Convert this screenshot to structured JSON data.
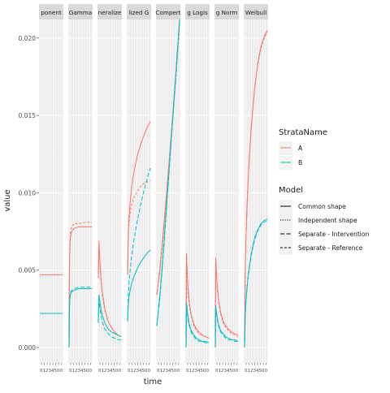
{
  "chart_data": {
    "type": "line",
    "facet_layout": "wrap",
    "facets": [
      "Exponential",
      "Gamma",
      "Generalized gamma",
      "Generalized F",
      "Gompertz",
      "Log-logistic",
      "Log-normal",
      "Weibull"
    ],
    "facet_labels_visible": [
      "ponent",
      "Gamma",
      "neralize",
      "lized G",
      "Compert",
      "g Logis",
      "g Norm",
      "Weibull"
    ],
    "xlabel": "time",
    "ylabel": "value",
    "ylim": [
      -0.001,
      0.0212
    ],
    "yticks": [
      0.0,
      0.005,
      0.01,
      0.015,
      0.02
    ],
    "ytick_labels": [
      "0.000",
      "0.005",
      "0.010",
      "0.015",
      "0.020"
    ],
    "xlim": [
      0,
      35
    ],
    "xtick_labels": [
      "01234500",
      "01234500",
      "01234500",
      "01234500",
      "01234500",
      "01234500",
      "01234500",
      "01234500"
    ],
    "grid": true,
    "legend_position": "right",
    "legends": [
      {
        "title": "StrataName",
        "entries": [
          {
            "label": "A",
            "color": "#F8766D"
          },
          {
            "label": "B",
            "color": "#00BFC4"
          }
        ]
      },
      {
        "title": "Model",
        "entries": [
          {
            "label": "Common shape",
            "dash": "solid"
          },
          {
            "label": "Independent shape",
            "dash": "dotted"
          },
          {
            "label": "Separate - Intervention",
            "dash": "longdash"
          },
          {
            "label": "Separate - Reference",
            "dash": "dashed"
          }
        ]
      }
    ],
    "series": [
      {
        "facet": 0,
        "strata": "A",
        "model": "Common shape",
        "x": [
          0,
          35
        ],
        "y": [
          0.0047,
          0.0047
        ]
      },
      {
        "facet": 0,
        "strata": "B",
        "model": "Common shape",
        "x": [
          0,
          35
        ],
        "y": [
          0.0022,
          0.0022
        ]
      },
      {
        "facet": 1,
        "strata": "A",
        "model": "Common shape",
        "x": [
          0,
          0.5,
          1,
          2,
          4,
          8,
          15,
          25,
          35
        ],
        "y": [
          0.0,
          0.0045,
          0.0062,
          0.0071,
          0.0075,
          0.0077,
          0.0078,
          0.0078,
          0.0078
        ]
      },
      {
        "facet": 1,
        "strata": "A",
        "model": "Separate - Reference",
        "x": [
          0,
          0.5,
          1,
          2,
          4,
          8,
          15,
          25,
          35
        ],
        "y": [
          0.0,
          0.0048,
          0.0065,
          0.0074,
          0.0078,
          0.008,
          0.008,
          0.0081,
          0.0081
        ]
      },
      {
        "facet": 1,
        "strata": "B",
        "model": "Common shape",
        "x": [
          0,
          0.5,
          1,
          2,
          4,
          8,
          15,
          25,
          35
        ],
        "y": [
          0.0,
          0.0022,
          0.003,
          0.0034,
          0.0036,
          0.0037,
          0.0038,
          0.0038,
          0.0038
        ]
      },
      {
        "facet": 1,
        "strata": "B",
        "model": "Separate - Intervention",
        "x": [
          0,
          0.5,
          1,
          2,
          4,
          8,
          15,
          25,
          35
        ],
        "y": [
          0.0,
          0.0023,
          0.0031,
          0.0035,
          0.0037,
          0.0038,
          0.0039,
          0.0039,
          0.0039
        ]
      },
      {
        "facet": 2,
        "strata": "A",
        "model": "Common shape",
        "x": [
          0,
          1,
          2,
          4,
          6,
          10,
          15,
          20,
          25,
          30,
          35
        ],
        "y": [
          0.0047,
          0.0069,
          0.006,
          0.0045,
          0.0036,
          0.0025,
          0.0017,
          0.0013,
          0.001,
          0.0008,
          0.0007
        ]
      },
      {
        "facet": 2,
        "strata": "A",
        "model": "Separate - Reference",
        "x": [
          0,
          1,
          2,
          4,
          6,
          10,
          15,
          20,
          25,
          30,
          35
        ],
        "y": [
          0.0045,
          0.0066,
          0.0058,
          0.0044,
          0.0035,
          0.0024,
          0.0017,
          0.0013,
          0.001,
          0.0008,
          0.0007
        ]
      },
      {
        "facet": 2,
        "strata": "B",
        "model": "Common shape",
        "x": [
          0,
          1,
          2,
          4,
          6,
          10,
          15,
          20,
          25,
          30,
          35
        ],
        "y": [
          0.0017,
          0.0034,
          0.0031,
          0.0025,
          0.0021,
          0.0016,
          0.0012,
          0.001,
          0.0009,
          0.0008,
          0.0007
        ]
      },
      {
        "facet": 2,
        "strata": "B",
        "model": "Separate - Intervention",
        "x": [
          0,
          1,
          2,
          4,
          6,
          10,
          15,
          20,
          25,
          30,
          35
        ],
        "y": [
          0.0016,
          0.003,
          0.0027,
          0.0021,
          0.0017,
          0.0012,
          0.0009,
          0.0007,
          0.0006,
          0.0005,
          0.0005
        ]
      },
      {
        "facet": 3,
        "strata": "A",
        "model": "Common shape",
        "x": [
          0,
          1,
          2,
          4,
          6,
          10,
          15,
          20,
          25,
          30,
          35
        ],
        "y": [
          0.0047,
          0.0072,
          0.0082,
          0.0094,
          0.0103,
          0.0114,
          0.0124,
          0.0131,
          0.0137,
          0.0142,
          0.0146
        ]
      },
      {
        "facet": 3,
        "strata": "A",
        "model": "Separate - Reference",
        "x": [
          0,
          1,
          2,
          4,
          6,
          10,
          15,
          20,
          25,
          30,
          35
        ],
        "y": [
          0.0047,
          0.007,
          0.0079,
          0.0087,
          0.0092,
          0.0097,
          0.0101,
          0.0104,
          0.0106,
          0.0107,
          0.0108
        ]
      },
      {
        "facet": 3,
        "strata": "B",
        "model": "Common shape",
        "x": [
          0,
          1,
          2,
          4,
          6,
          10,
          15,
          20,
          25,
          30,
          35
        ],
        "y": [
          0.0017,
          0.0027,
          0.0032,
          0.0037,
          0.0041,
          0.0046,
          0.0051,
          0.0055,
          0.0058,
          0.0061,
          0.0063
        ]
      },
      {
        "facet": 3,
        "strata": "B",
        "model": "Separate - Intervention",
        "x": [
          0,
          1,
          2,
          4,
          6,
          10,
          15,
          20,
          25,
          30,
          35
        ],
        "y": [
          0.0017,
          0.0032,
          0.004,
          0.005,
          0.0058,
          0.007,
          0.0082,
          0.0092,
          0.0101,
          0.0109,
          0.0116
        ]
      },
      {
        "facet": 4,
        "strata": "A",
        "model": "Common shape",
        "x": [
          0,
          5,
          10,
          15,
          20,
          25,
          30,
          35
        ],
        "y": [
          0.0034,
          0.0052,
          0.0075,
          0.01,
          0.0126,
          0.0153,
          0.0181,
          0.0212
        ]
      },
      {
        "facet": 4,
        "strata": "A",
        "model": "Separate - Reference",
        "x": [
          0,
          5,
          10,
          15,
          20,
          25,
          30,
          35
        ],
        "y": [
          0.0034,
          0.005,
          0.0072,
          0.0097,
          0.0123,
          0.015,
          0.0178,
          0.0207
        ]
      },
      {
        "facet": 4,
        "strata": "B",
        "model": "Common shape",
        "x": [
          0,
          5,
          10,
          15,
          20,
          25,
          30,
          35
        ],
        "y": [
          0.0014,
          0.0035,
          0.0062,
          0.0092,
          0.0122,
          0.0152,
          0.0182,
          0.0212
        ]
      },
      {
        "facet": 4,
        "strata": "B",
        "model": "Separate - Intervention",
        "x": [
          0,
          5,
          10,
          15,
          20,
          25,
          30,
          35
        ],
        "y": [
          0.0014,
          0.0033,
          0.006,
          0.009,
          0.012,
          0.015,
          0.018,
          0.021
        ]
      },
      {
        "facet": 5,
        "strata": "A",
        "model": "Common shape",
        "x": [
          0,
          0.6,
          1.5,
          3,
          5,
          8,
          12,
          16,
          20,
          25,
          30,
          35
        ],
        "y": [
          0.0,
          0.0061,
          0.0052,
          0.0039,
          0.0029,
          0.0021,
          0.0015,
          0.0012,
          0.001,
          0.0008,
          0.0007,
          0.0006
        ]
      },
      {
        "facet": 5,
        "strata": "A",
        "model": "Separate - Reference",
        "x": [
          0,
          0.6,
          1.5,
          3,
          5,
          8,
          12,
          16,
          20,
          25,
          30,
          35
        ],
        "y": [
          0.0,
          0.0056,
          0.0048,
          0.0036,
          0.0027,
          0.002,
          0.0014,
          0.0011,
          0.0009,
          0.0008,
          0.0007,
          0.0006
        ]
      },
      {
        "facet": 5,
        "strata": "B",
        "model": "Common shape",
        "x": [
          0,
          0.6,
          1.5,
          3,
          5,
          8,
          12,
          16,
          20,
          25,
          30,
          35
        ],
        "y": [
          0.0,
          0.0029,
          0.0026,
          0.002,
          0.0015,
          0.0011,
          0.0008,
          0.0006,
          0.0005,
          0.0004,
          0.0004,
          0.0003
        ]
      },
      {
        "facet": 5,
        "strata": "B",
        "model": "Separate - Intervention",
        "x": [
          0,
          0.6,
          1.5,
          3,
          5,
          8,
          12,
          16,
          20,
          25,
          30,
          35
        ],
        "y": [
          0.0,
          0.0027,
          0.0024,
          0.0018,
          0.0014,
          0.001,
          0.0007,
          0.0005,
          0.0004,
          0.0004,
          0.0003,
          0.0003
        ]
      },
      {
        "facet": 6,
        "strata": "A",
        "model": "Common shape",
        "x": [
          0,
          0.6,
          1.5,
          3,
          5,
          8,
          12,
          16,
          20,
          25,
          30,
          35
        ],
        "y": [
          0.0,
          0.0058,
          0.005,
          0.004,
          0.0031,
          0.0023,
          0.0017,
          0.0014,
          0.0012,
          0.001,
          0.0009,
          0.0008
        ]
      },
      {
        "facet": 6,
        "strata": "A",
        "model": "Separate - Reference",
        "x": [
          0,
          0.6,
          1.5,
          3,
          5,
          8,
          12,
          16,
          20,
          25,
          30,
          35
        ],
        "y": [
          0.0,
          0.0054,
          0.0047,
          0.0038,
          0.003,
          0.0022,
          0.0016,
          0.0013,
          0.0011,
          0.0009,
          0.0008,
          0.0007
        ]
      },
      {
        "facet": 6,
        "strata": "B",
        "model": "Common shape",
        "x": [
          0,
          0.6,
          1.5,
          3,
          5,
          8,
          12,
          16,
          20,
          25,
          30,
          35
        ],
        "y": [
          0.0,
          0.0027,
          0.0024,
          0.0019,
          0.0015,
          0.0011,
          0.0009,
          0.0007,
          0.0006,
          0.0005,
          0.0005,
          0.0004
        ]
      },
      {
        "facet": 6,
        "strata": "B",
        "model": "Separate - Intervention",
        "x": [
          0,
          0.6,
          1.5,
          3,
          5,
          8,
          12,
          16,
          20,
          25,
          30,
          35
        ],
        "y": [
          0.0,
          0.0025,
          0.0022,
          0.0018,
          0.0014,
          0.001,
          0.0008,
          0.0006,
          0.0005,
          0.0005,
          0.0004,
          0.0004
        ]
      },
      {
        "facet": 7,
        "strata": "A",
        "model": "Common shape",
        "x": [
          0,
          1,
          2,
          4,
          6,
          10,
          15,
          20,
          25,
          30,
          35
        ],
        "y": [
          0.0,
          0.0049,
          0.0068,
          0.0094,
          0.0113,
          0.0141,
          0.0166,
          0.0183,
          0.0194,
          0.0201,
          0.0205
        ]
      },
      {
        "facet": 7,
        "strata": "A",
        "model": "Separate - Reference",
        "x": [
          0,
          1,
          2,
          4,
          6,
          10,
          15,
          20,
          25,
          30,
          35
        ],
        "y": [
          0.0,
          0.0048,
          0.0067,
          0.0093,
          0.0112,
          0.014,
          0.0165,
          0.0182,
          0.0193,
          0.02,
          0.0204
        ]
      },
      {
        "facet": 7,
        "strata": "B",
        "model": "Common shape",
        "x": [
          0,
          1,
          2,
          4,
          6,
          10,
          15,
          20,
          25,
          30,
          35
        ],
        "y": [
          0.0,
          0.0021,
          0.0029,
          0.004,
          0.0048,
          0.006,
          0.007,
          0.0076,
          0.008,
          0.0082,
          0.0083
        ]
      },
      {
        "facet": 7,
        "strata": "B",
        "model": "Separate - Intervention",
        "x": [
          0,
          1,
          2,
          4,
          6,
          10,
          15,
          20,
          25,
          30,
          35
        ],
        "y": [
          0.0,
          0.002,
          0.0028,
          0.0039,
          0.0047,
          0.0059,
          0.0069,
          0.0075,
          0.0079,
          0.0081,
          0.0082
        ]
      }
    ]
  }
}
